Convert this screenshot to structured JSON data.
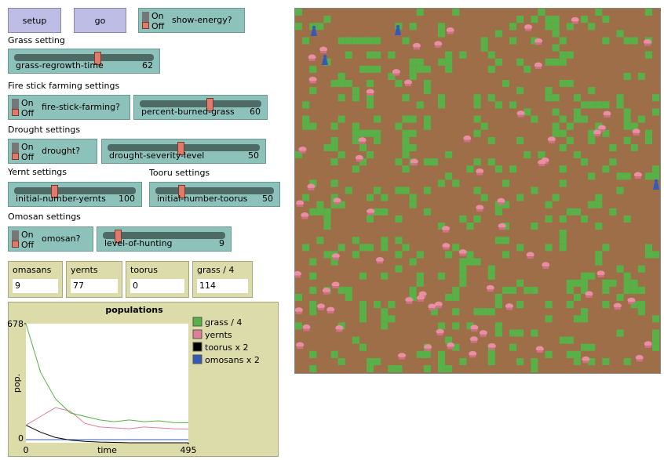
{
  "buttons": [
    {
      "label": "setup"
    },
    {
      "label": "go"
    }
  ],
  "switch_on": "On",
  "switch_off": "Off",
  "switches": [
    {
      "label": "show-energy?"
    },
    {
      "label": "fire-stick-farming?"
    },
    {
      "label": "drought?"
    },
    {
      "label": "omosan?"
    }
  ],
  "section_labels": [
    "Grass setting",
    "Fire stick farming settings",
    "Drought settings",
    "Yernt settings",
    "Tooru settings",
    "Omosan settings"
  ],
  "sliders": [
    {
      "label": "grass-regrowth-time",
      "value": "62"
    },
    {
      "label": "percent-burned-grass",
      "value": "60"
    },
    {
      "label": "drought-severity-level",
      "value": "50"
    },
    {
      "label": "initial-number-yernts",
      "value": "100"
    },
    {
      "label": "initial-number-toorus",
      "value": "50"
    },
    {
      "label": "level-of-hunting",
      "value": "9"
    }
  ],
  "monitors": [
    {
      "label": "omasans",
      "value": "9"
    },
    {
      "label": "yernts",
      "value": "77"
    },
    {
      "label": "toorus",
      "value": "0"
    },
    {
      "label": "grass / 4",
      "value": "114"
    }
  ],
  "plot": {
    "title": "populations",
    "x_label": "time",
    "y_label": "pop.",
    "xlim": [
      0,
      495
    ],
    "ylim": [
      0,
      678
    ],
    "x": [
      0,
      45,
      90,
      135,
      180,
      225,
      270,
      315,
      360,
      405,
      450,
      495
    ],
    "series": [
      {
        "name": "grass / 4",
        "color": "#59b047",
        "values": [
          678,
          400,
          250,
          170,
          150,
          130,
          120,
          130,
          120,
          125,
          115,
          114
        ]
      },
      {
        "name": "yernts",
        "color": "#e07e96",
        "values": [
          100,
          150,
          200,
          180,
          110,
          90,
          85,
          80,
          90,
          85,
          80,
          77
        ]
      },
      {
        "name": "toorus x 2",
        "color": "#000000",
        "values": [
          100,
          60,
          30,
          15,
          8,
          4,
          2,
          0,
          0,
          0,
          0,
          0
        ]
      },
      {
        "name": "omosans x 2",
        "color": "#345ab8",
        "values": [
          18,
          18,
          18,
          18,
          18,
          18,
          18,
          18,
          18,
          18,
          18,
          18
        ]
      }
    ]
  }
}
